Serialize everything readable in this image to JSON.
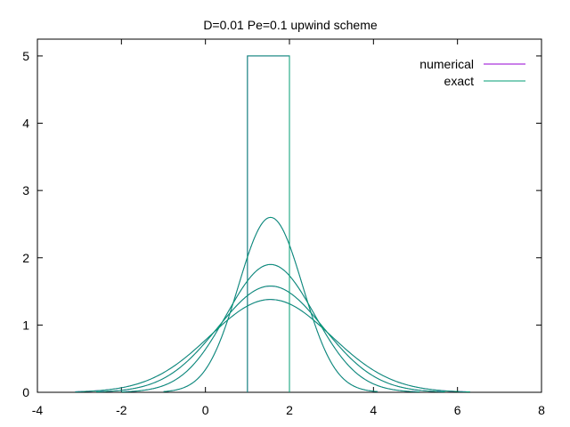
{
  "chart_data": {
    "type": "line",
    "title": "D=0.01 Pe=0.1 upwind scheme",
    "xlabel": "",
    "ylabel": "",
    "xlim": [
      -4,
      8
    ],
    "ylim": [
      0,
      5.25
    ],
    "xticks": [
      -4,
      -2,
      0,
      2,
      4,
      6,
      8
    ],
    "yticks": [
      0,
      1,
      2,
      3,
      4,
      5
    ],
    "grid": false,
    "legend_position": "top-right",
    "series": [
      {
        "name": "numerical",
        "color": "#9400d3",
        "initial_pulse": {
          "x_start": 1.0,
          "x_end": 2.0,
          "height": 5.0
        },
        "peaks": [
          {
            "center": 1.55,
            "peak": 2.6,
            "x_range": [
              -1.0,
              4.1
            ]
          },
          {
            "center": 1.55,
            "peak": 1.9,
            "x_range": [
              -2.0,
              5.1
            ]
          },
          {
            "center": 1.55,
            "peak": 1.58,
            "x_range": [
              -2.6,
              5.7
            ]
          },
          {
            "center": 1.55,
            "peak": 1.38,
            "x_range": [
              -3.1,
              6.3
            ]
          }
        ]
      },
      {
        "name": "exact",
        "color": "#009e73",
        "initial_pulse": {
          "x_start": 1.0,
          "x_end": 2.0,
          "height": 5.0
        },
        "peaks": [
          {
            "center": 1.55,
            "peak": 2.6,
            "x_range": [
              -1.0,
              4.1
            ]
          },
          {
            "center": 1.55,
            "peak": 1.9,
            "x_range": [
              -2.0,
              5.1
            ]
          },
          {
            "center": 1.55,
            "peak": 1.58,
            "x_range": [
              -2.6,
              5.7
            ]
          },
          {
            "center": 1.55,
            "peak": 1.38,
            "x_range": [
              -3.1,
              6.3
            ]
          }
        ]
      }
    ]
  }
}
